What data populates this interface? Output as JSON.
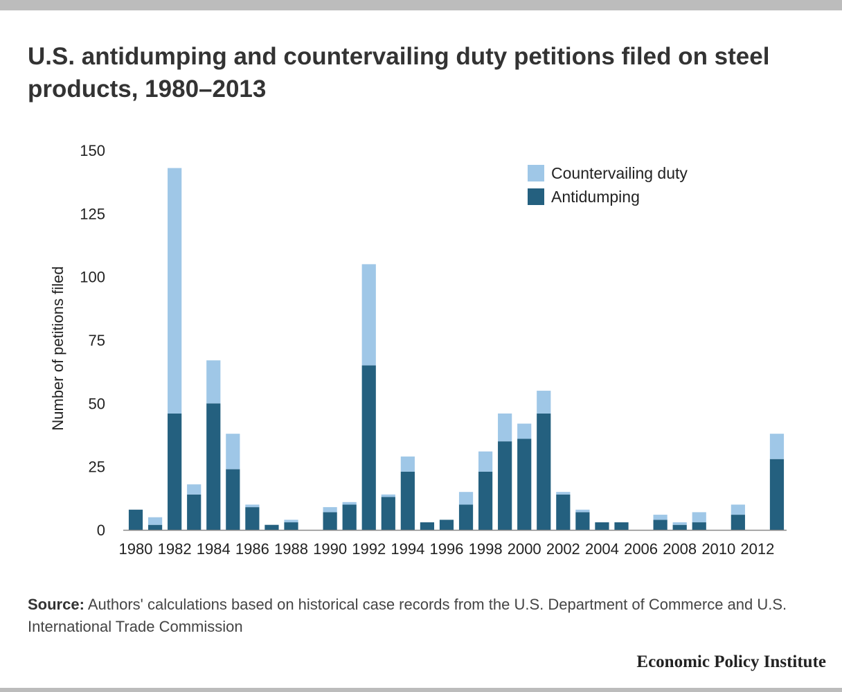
{
  "title": "U.S. antidumping and countervailing duty petitions filed on steel products, 1980–2013",
  "source": {
    "label": "Source:",
    "text": "Authors' calculations based on historical case records from the U.S. Department of Commerce and U.S. International Trade Commission"
  },
  "brand": "Economic Policy Institute",
  "chart_data": {
    "type": "bar",
    "stacked": true,
    "title": "U.S. antidumping and countervailing duty petitions filed on steel products, 1980–2013",
    "xlabel": "",
    "ylabel": "Number of petitions filed",
    "ylim": [
      0,
      150
    ],
    "yticks": [
      0,
      25,
      50,
      75,
      100,
      125,
      150
    ],
    "grid": false,
    "legend_position": "top-right",
    "categories": [
      "1980",
      "1981",
      "1982",
      "1983",
      "1984",
      "1985",
      "1986",
      "1987",
      "1988",
      "1989",
      "1990",
      "1991",
      "1992",
      "1993",
      "1994",
      "1995",
      "1996",
      "1997",
      "1998",
      "1999",
      "2000",
      "2001",
      "2002",
      "2003",
      "2004",
      "2005",
      "2006",
      "2007",
      "2008",
      "2009",
      "2010",
      "2011",
      "2012",
      "2013"
    ],
    "tick_labels": [
      "1980",
      "1982",
      "1984",
      "1986",
      "1988",
      "1990",
      "1992",
      "1994",
      "1996",
      "1998",
      "2000",
      "2002",
      "2004",
      "2006",
      "2008",
      "2010",
      "2012"
    ],
    "series": [
      {
        "name": "Antidumping",
        "color": "#24607f",
        "values": [
          8,
          2,
          46,
          14,
          50,
          24,
          9,
          2,
          3,
          0,
          7,
          10,
          65,
          13,
          23,
          3,
          4,
          10,
          23,
          35,
          36,
          46,
          14,
          7,
          3,
          3,
          0,
          4,
          2,
          3,
          0,
          6,
          0,
          28
        ]
      },
      {
        "name": "Countervailing duty",
        "color": "#9fc7e7",
        "values": [
          0,
          3,
          97,
          4,
          17,
          14,
          1,
          0,
          1,
          0,
          2,
          1,
          40,
          1,
          6,
          0,
          0,
          5,
          8,
          11,
          6,
          9,
          1,
          1,
          0,
          0,
          0,
          2,
          1,
          4,
          0,
          4,
          0,
          10
        ]
      }
    ],
    "legend": [
      {
        "name": "Countervailing duty",
        "color": "#9fc7e7"
      },
      {
        "name": "Antidumping",
        "color": "#24607f"
      }
    ],
    "axis_color": "#888888"
  }
}
